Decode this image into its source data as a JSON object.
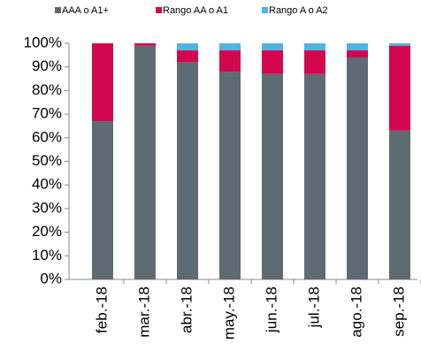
{
  "chart_data": {
    "type": "stacked_bar",
    "categories": [
      "feb.-18",
      "mar.-18",
      "abr.-18",
      "may.-18",
      "jun.-18",
      "jul.-18",
      "ago.-18",
      "sep.-18"
    ],
    "series": [
      {
        "name": "AAA o A1+",
        "color": "#5f6b73",
        "values": [
          67,
          99,
          92,
          88,
          87,
          87,
          94,
          63
        ]
      },
      {
        "name": "Rango AA o A1",
        "color": "#d3074d",
        "values": [
          33,
          1,
          5,
          9,
          10,
          10,
          3,
          36
        ]
      },
      {
        "name": "Rango A o A2",
        "color": "#4fb3e6",
        "values": [
          0,
          0,
          3,
          3,
          3,
          3,
          3,
          1
        ]
      }
    ],
    "ylim": [
      0,
      100
    ],
    "yticks": [
      {
        "value": 0,
        "label": "0%"
      },
      {
        "value": 10,
        "label": "10%"
      },
      {
        "value": 20,
        "label": "20%"
      },
      {
        "value": 30,
        "label": "30%"
      },
      {
        "value": 40,
        "label": "40%"
      },
      {
        "value": 50,
        "label": "50%"
      },
      {
        "value": 60,
        "label": "60%"
      },
      {
        "value": 70,
        "label": "70%"
      },
      {
        "value": 80,
        "label": "80%"
      },
      {
        "value": 90,
        "label": "90%"
      },
      {
        "value": 100,
        "label": "100%"
      }
    ],
    "legend": "top"
  }
}
